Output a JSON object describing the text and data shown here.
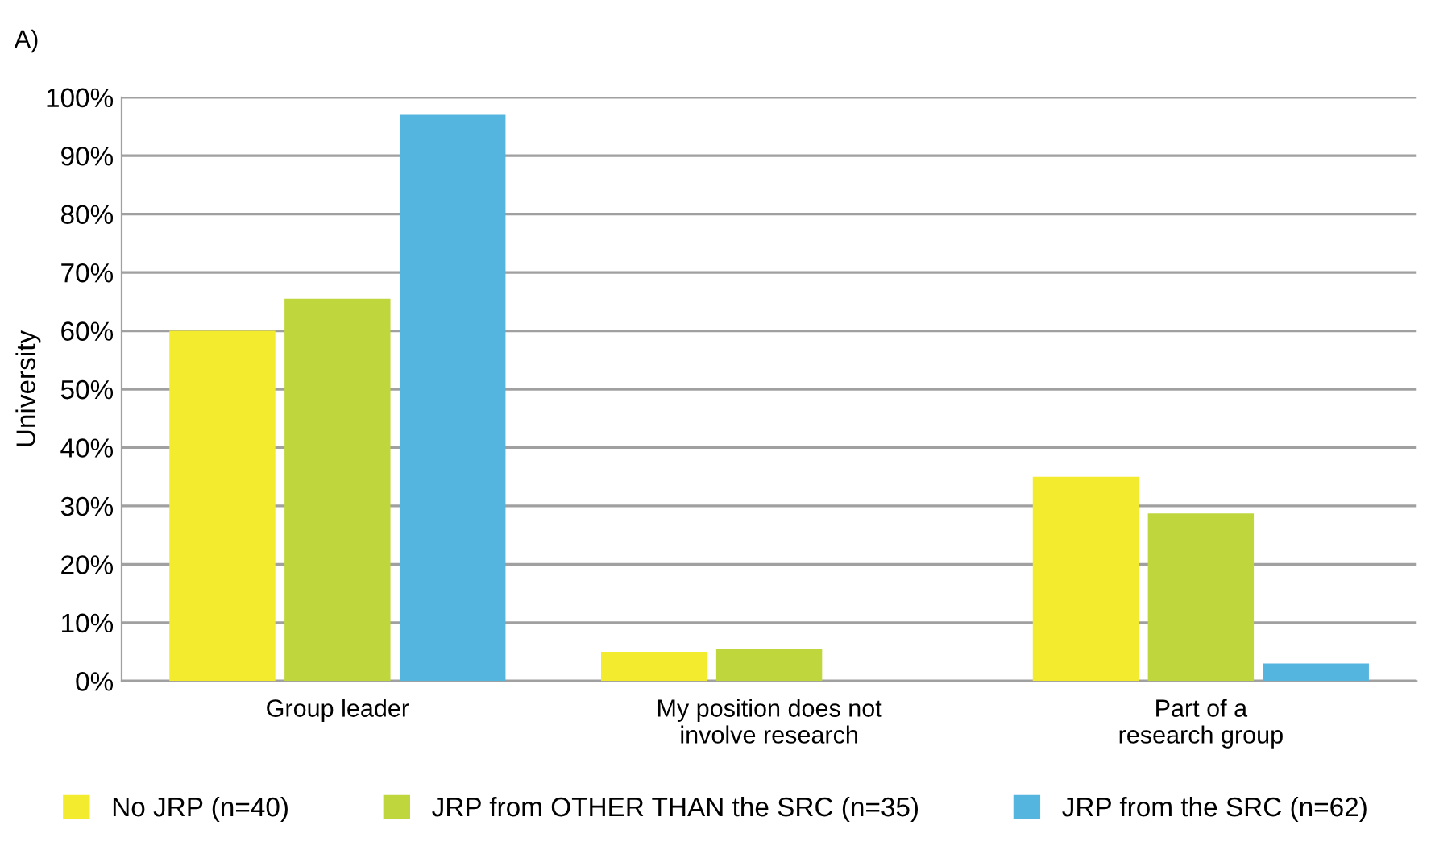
{
  "chart_data": {
    "type": "bar",
    "title": "A)",
    "ylabel": "University",
    "categories": [
      "Group leader",
      "My position does not\ninvolve research",
      "Part of a\nresearch group"
    ],
    "series": [
      {
        "name": "No JRP (n=40)",
        "color": "#f2eb2e",
        "values": [
          60,
          5,
          35
        ]
      },
      {
        "name": "JRP from OTHER THAN the SRC (n=35)",
        "color": "#bfd73c",
        "values": [
          65.5,
          5.5,
          28.7
        ]
      },
      {
        "name": "JRP from the SRC (n=62)",
        "color": "#54b5df",
        "values": [
          97,
          0,
          3
        ]
      }
    ],
    "ylim": [
      0,
      100
    ],
    "yticks": [
      {
        "value": 0,
        "label": "0%"
      },
      {
        "value": 10,
        "label": "10%"
      },
      {
        "value": 20,
        "label": "20%"
      },
      {
        "value": 30,
        "label": "30%"
      },
      {
        "value": 40,
        "label": "40%"
      },
      {
        "value": 50,
        "label": "50%"
      },
      {
        "value": 60,
        "label": "60%"
      },
      {
        "value": 70,
        "label": "70%"
      },
      {
        "value": 80,
        "label": "80%"
      },
      {
        "value": 90,
        "label": "90%"
      },
      {
        "value": 100,
        "label": "100%"
      }
    ],
    "grid": "y",
    "legend": "bottom"
  }
}
